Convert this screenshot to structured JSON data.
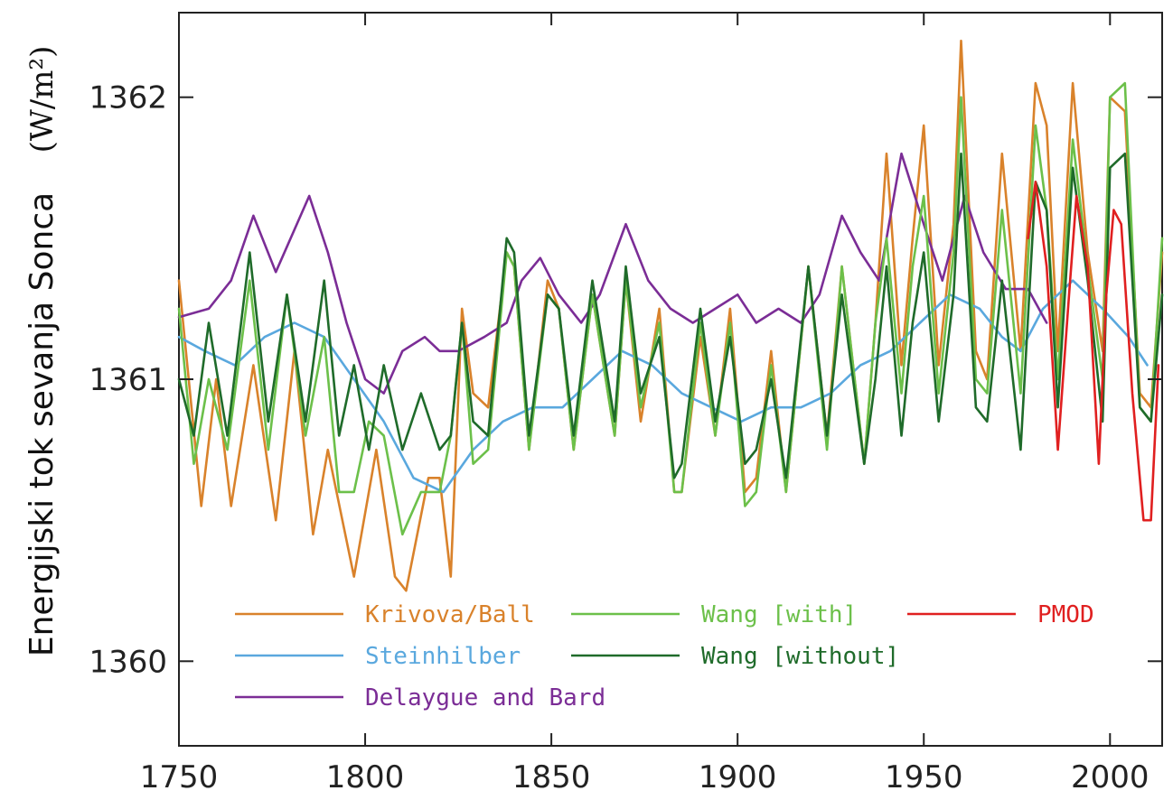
{
  "chart_data": {
    "type": "line",
    "ylabel": "Energijski tok sevanja Sonca",
    "yunit": "(W/m²)",
    "xlim": [
      1750,
      2014
    ],
    "ylim": [
      1359.7,
      1362.3
    ],
    "xticks": [
      1750,
      1800,
      1850,
      1900,
      1950,
      2000
    ],
    "yticks": [
      1360,
      1361,
      1362
    ],
    "grid": false,
    "legend_position": "bottom-left",
    "series": [
      {
        "name": "Krivova/Ball",
        "color": "#d9822b",
        "x": [
          1750,
          1756,
          1760,
          1764,
          1770,
          1776,
          1781,
          1786,
          1790,
          1797,
          1803,
          1808,
          1811,
          1817,
          1820,
          1823,
          1826,
          1829,
          1833,
          1838,
          1840,
          1844,
          1849,
          1852,
          1856,
          1861,
          1867,
          1870,
          1874,
          1879,
          1883,
          1885,
          1890,
          1894,
          1898,
          1902,
          1905,
          1909,
          1913,
          1919,
          1924,
          1928,
          1934,
          1937,
          1940,
          1944,
          1947,
          1950,
          1954,
          1958,
          1960,
          1964,
          1967,
          1971,
          1976,
          1980,
          1983,
          1986,
          1990,
          1994,
          1998,
          2000,
          2004,
          2008,
          2011,
          2014
        ],
        "y": [
          1361.35,
          1360.55,
          1361.0,
          1360.55,
          1361.05,
          1360.5,
          1361.1,
          1360.45,
          1360.75,
          1360.3,
          1360.75,
          1360.3,
          1360.25,
          1360.65,
          1360.65,
          1360.3,
          1361.25,
          1360.95,
          1360.9,
          1361.45,
          1361.4,
          1360.75,
          1361.35,
          1361.25,
          1360.75,
          1361.3,
          1360.8,
          1361.35,
          1360.85,
          1361.25,
          1360.6,
          1360.6,
          1361.15,
          1360.8,
          1361.25,
          1360.6,
          1360.65,
          1361.1,
          1360.6,
          1361.4,
          1360.8,
          1361.4,
          1360.7,
          1361.2,
          1361.8,
          1361.05,
          1361.5,
          1361.9,
          1361.05,
          1361.55,
          1362.2,
          1361.1,
          1361.0,
          1361.8,
          1361.1,
          1362.05,
          1361.9,
          1361.1,
          1362.05,
          1361.45,
          1361.1,
          1362.0,
          1361.95,
          1360.95,
          1360.9,
          1361.45
        ]
      },
      {
        "name": "Steinhilber",
        "color": "#5aa8de",
        "x": [
          1750,
          1757,
          1765,
          1773,
          1781,
          1789,
          1797,
          1805,
          1813,
          1821,
          1829,
          1837,
          1845,
          1853,
          1861,
          1869,
          1877,
          1885,
          1893,
          1901,
          1909,
          1917,
          1925,
          1933,
          1941,
          1949,
          1957,
          1965,
          1971,
          1976,
          1982,
          1990,
          1998,
          2005,
          2010
        ],
        "y": [
          1361.15,
          1361.1,
          1361.05,
          1361.15,
          1361.2,
          1361.15,
          1361.0,
          1360.85,
          1360.65,
          1360.6,
          1360.75,
          1360.85,
          1360.9,
          1360.9,
          1361.0,
          1361.1,
          1361.05,
          1360.95,
          1360.9,
          1360.85,
          1360.9,
          1360.9,
          1360.95,
          1361.05,
          1361.1,
          1361.2,
          1361.3,
          1361.25,
          1361.15,
          1361.1,
          1361.25,
          1361.35,
          1361.25,
          1361.15,
          1361.05
        ]
      },
      {
        "name": "Delaygue and Bard",
        "color": "#7b2d96",
        "x": [
          1750,
          1758,
          1764,
          1770,
          1776,
          1785,
          1790,
          1795,
          1800,
          1805,
          1810,
          1816,
          1820,
          1825,
          1832,
          1838,
          1842,
          1847,
          1852,
          1858,
          1863,
          1870,
          1876,
          1882,
          1888,
          1894,
          1900,
          1905,
          1911,
          1917,
          1922,
          1928,
          1933,
          1938,
          1944,
          1950,
          1955,
          1961,
          1966,
          1972,
          1978,
          1983
        ],
        "y": [
          1361.22,
          1361.25,
          1361.35,
          1361.58,
          1361.38,
          1361.65,
          1361.45,
          1361.2,
          1361.0,
          1360.95,
          1361.1,
          1361.15,
          1361.1,
          1361.1,
          1361.15,
          1361.2,
          1361.35,
          1361.43,
          1361.3,
          1361.2,
          1361.3,
          1361.55,
          1361.35,
          1361.25,
          1361.2,
          1361.25,
          1361.3,
          1361.2,
          1361.25,
          1361.2,
          1361.3,
          1361.58,
          1361.45,
          1361.35,
          1361.8,
          1361.55,
          1361.35,
          1361.65,
          1361.45,
          1361.32,
          1361.32,
          1361.2
        ]
      },
      {
        "name": "Wang [with]",
        "color": "#6cc04a",
        "x": [
          1750,
          1754,
          1758,
          1763,
          1769,
          1774,
          1779,
          1784,
          1789,
          1793,
          1797,
          1801,
          1805,
          1810,
          1815,
          1820,
          1823,
          1826,
          1829,
          1833,
          1838,
          1840,
          1844,
          1849,
          1852,
          1856,
          1861,
          1867,
          1870,
          1874,
          1879,
          1883,
          1885,
          1890,
          1894,
          1898,
          1902,
          1905,
          1909,
          1913,
          1919,
          1924,
          1928,
          1934,
          1937,
          1940,
          1944,
          1947,
          1950,
          1954,
          1958,
          1960,
          1964,
          1967,
          1971,
          1976,
          1980,
          1983,
          1986,
          1990,
          1994,
          1998,
          2000,
          2004,
          2008,
          2011,
          2014
        ],
        "y": [
          1361.25,
          1360.7,
          1361.0,
          1360.75,
          1361.35,
          1360.75,
          1361.3,
          1360.8,
          1361.15,
          1360.6,
          1360.6,
          1360.85,
          1360.8,
          1360.45,
          1360.6,
          1360.6,
          1360.8,
          1361.2,
          1360.7,
          1360.75,
          1361.45,
          1361.4,
          1360.75,
          1361.3,
          1361.25,
          1360.75,
          1361.3,
          1360.8,
          1361.35,
          1360.9,
          1361.2,
          1360.6,
          1360.6,
          1361.2,
          1360.8,
          1361.2,
          1360.55,
          1360.6,
          1361.05,
          1360.6,
          1361.4,
          1360.75,
          1361.4,
          1360.7,
          1361.2,
          1361.5,
          1360.95,
          1361.4,
          1361.65,
          1360.95,
          1361.45,
          1362.0,
          1361.0,
          1360.95,
          1361.6,
          1360.95,
          1361.9,
          1361.6,
          1361.0,
          1361.85,
          1361.4,
          1361.0,
          1362.0,
          1362.05,
          1360.9,
          1360.85,
          1361.5
        ]
      },
      {
        "name": "Wang [without]",
        "color": "#1f6b2a",
        "x": [
          1750,
          1754,
          1758,
          1763,
          1769,
          1774,
          1779,
          1784,
          1789,
          1793,
          1797,
          1801,
          1805,
          1810,
          1815,
          1820,
          1823,
          1826,
          1829,
          1833,
          1838,
          1840,
          1844,
          1849,
          1852,
          1856,
          1861,
          1867,
          1870,
          1874,
          1879,
          1883,
          1885,
          1890,
          1894,
          1898,
          1902,
          1905,
          1909,
          1913,
          1919,
          1924,
          1928,
          1934,
          1937,
          1940,
          1944,
          1947,
          1950,
          1954,
          1958,
          1960,
          1964,
          1967,
          1971,
          1976,
          1980,
          1983,
          1986,
          1990,
          1994,
          1998,
          2000,
          2004,
          2008,
          2011,
          2014
        ],
        "y": [
          1361.0,
          1360.8,
          1361.2,
          1360.8,
          1361.45,
          1360.85,
          1361.3,
          1360.85,
          1361.35,
          1360.8,
          1361.05,
          1360.75,
          1361.05,
          1360.75,
          1360.95,
          1360.75,
          1360.8,
          1361.2,
          1360.85,
          1360.8,
          1361.5,
          1361.45,
          1360.8,
          1361.3,
          1361.25,
          1360.8,
          1361.35,
          1360.85,
          1361.4,
          1360.95,
          1361.15,
          1360.65,
          1360.7,
          1361.25,
          1360.85,
          1361.15,
          1360.7,
          1360.75,
          1361.0,
          1360.65,
          1361.4,
          1360.8,
          1361.3,
          1360.7,
          1361.0,
          1361.4,
          1360.8,
          1361.2,
          1361.45,
          1360.85,
          1361.3,
          1361.8,
          1360.9,
          1360.85,
          1361.35,
          1360.75,
          1361.7,
          1361.6,
          1360.9,
          1361.75,
          1361.35,
          1360.85,
          1361.75,
          1361.8,
          1360.9,
          1360.85,
          1361.3
        ]
      },
      {
        "name": "PMOD",
        "color": "#e02020",
        "x": [
          1978,
          1980,
          1983,
          1986,
          1989,
          1991,
          1994,
          1997,
          1999,
          2001,
          2003,
          2006,
          2009,
          2011,
          2013
        ],
        "y": [
          1361.5,
          1361.7,
          1361.4,
          1360.75,
          1361.3,
          1361.65,
          1361.4,
          1360.7,
          1361.3,
          1361.6,
          1361.55,
          1360.95,
          1360.5,
          1360.5,
          1361.05
        ]
      }
    ]
  }
}
